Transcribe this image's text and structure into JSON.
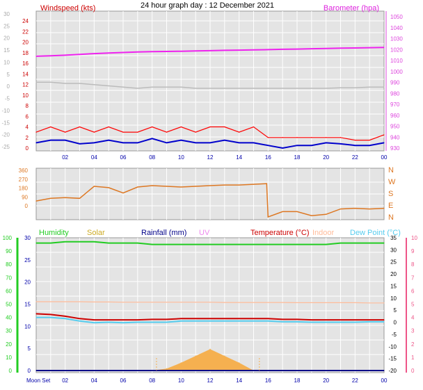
{
  "title": "24 hour graph day : 12 December 2021",
  "colors": {
    "plot_bg": "#e4e4e4",
    "grid": "#ffffff",
    "wind_avg": "#0000cc",
    "wind_gust": "#ff0000",
    "baro": "#ee22ee",
    "wind_dir": "#dd7722",
    "humidity": "#22cc22",
    "solar": "#ccaa22",
    "rainfall": "#000088",
    "uv": "#ee88ee",
    "temperature": "#cc0000",
    "indoor": "#ffbb99",
    "dewpoint": "#55ccee",
    "solar_fill": "#f5b050",
    "left_axis": "#aaaaaa",
    "left_axis_green": "#22cc22",
    "right_axis_magenta": "#dd44dd",
    "right_axis_pink": "#ee5588",
    "x_axis": "#0000aa"
  },
  "x_labels": [
    "02",
    "04",
    "06",
    "08",
    "10",
    "12",
    "14",
    "16",
    "18",
    "20",
    "22",
    "00"
  ],
  "moon_label": "Moon Set",
  "chart_data": [
    {
      "type": "line",
      "name": "wind-baro",
      "title": "24 hour graph day : 12 December 2021",
      "left_label": "Windspeed (kts)",
      "right_label": "Barometer (hpa)",
      "left_ticks_gray": [
        "30",
        "25",
        "20",
        "15",
        "10",
        "5",
        "0",
        "-5",
        "-10",
        "-15",
        "-20",
        "-25"
      ],
      "left_ticks_red": [
        "24",
        "22",
        "20",
        "18",
        "16",
        "14",
        "12",
        "10",
        "8",
        "6",
        "4",
        "2",
        "0"
      ],
      "right_ticks": [
        "1050",
        "1040",
        "1030",
        "1020",
        "1010",
        "1000",
        "990",
        "980",
        "970",
        "960",
        "950",
        "940",
        "930"
      ],
      "x": [
        0,
        1,
        2,
        3,
        4,
        5,
        6,
        7,
        8,
        9,
        10,
        11,
        12,
        13,
        14,
        15,
        16,
        17,
        18,
        19,
        20,
        21,
        22,
        23,
        24
      ],
      "series": [
        {
          "key": "baro",
          "unit": "hpa",
          "values": [
            1013,
            1013.5,
            1014,
            1014.8,
            1015.5,
            1016,
            1016.5,
            1017,
            1017.3,
            1017.5,
            1017.7,
            1018,
            1018.2,
            1018.5,
            1018.7,
            1019,
            1019.2,
            1019.5,
            1019.7,
            1020,
            1020.2,
            1020.5,
            1020.7,
            1021,
            1021.2
          ]
        },
        {
          "key": "gray",
          "unit": "",
          "values": [
            2,
            2,
            1.5,
            1.5,
            1,
            0.5,
            0,
            -0.5,
            0,
            0,
            0,
            -0.5,
            -0.5,
            -0.5,
            -0.5,
            -0.5,
            -0.5,
            -0.5,
            -0.5,
            -0.5,
            -0.5,
            -0.3,
            -0.3,
            0,
            0
          ]
        },
        {
          "key": "wind_gust",
          "unit": "kts",
          "values": [
            3,
            4,
            3,
            4,
            3,
            4,
            3,
            3,
            4,
            3,
            4,
            3,
            4,
            4,
            3,
            4,
            2,
            2,
            2,
            2,
            2,
            2,
            1.5,
            1.5,
            2.5
          ]
        },
        {
          "key": "wind_avg",
          "unit": "kts",
          "values": [
            1,
            1.5,
            1.5,
            0.8,
            1,
            1.5,
            1,
            1,
            1.8,
            1,
            1.5,
            1,
            1,
            1.5,
            1,
            1,
            0.5,
            0,
            0.5,
            0.5,
            1,
            0.8,
            0.5,
            0.5,
            1
          ]
        }
      ]
    },
    {
      "type": "line",
      "name": "wind-direction",
      "left_ticks": [
        "360",
        "270",
        "180",
        "90",
        "0"
      ],
      "right_ticks": [
        "N",
        "W",
        "S",
        "E",
        "N"
      ],
      "x": [
        0,
        1,
        2,
        3,
        4,
        5,
        6,
        7,
        8,
        9,
        10,
        11,
        12,
        13,
        14,
        15,
        15.9,
        16,
        17,
        18,
        19,
        20,
        21,
        22,
        23,
        24
      ],
      "series": [
        {
          "key": "wind_dir",
          "unit": "deg",
          "values": [
            130,
            150,
            155,
            150,
            240,
            230,
            190,
            235,
            245,
            240,
            235,
            240,
            245,
            250,
            250,
            255,
            260,
            10,
            50,
            50,
            20,
            30,
            70,
            75,
            70,
            75
          ]
        }
      ]
    },
    {
      "type": "line",
      "name": "temperature-humidity",
      "legend": [
        "Humidity",
        "Solar",
        "Rainfall (mm)",
        "UV",
        "Temperature (°C)",
        "Indoor",
        "Dew Point (°C)"
      ],
      "left_ticks_green": [
        "100",
        "90",
        "80",
        "70",
        "60",
        "50",
        "40",
        "30",
        "20",
        "10",
        "0"
      ],
      "left_ticks_gray": [
        "30",
        "25",
        "20",
        "15",
        "10",
        "5",
        "0"
      ],
      "right_ticks": [
        "35",
        "30",
        "25",
        "20",
        "15",
        "10",
        "5",
        "0",
        "-5",
        "-10",
        "-15",
        "-20"
      ],
      "right_ticks_pink": [
        "10",
        "9",
        "8",
        "7",
        "6",
        "5",
        "4",
        "3",
        "2",
        "1",
        "0"
      ],
      "x": [
        0,
        1,
        2,
        3,
        4,
        5,
        6,
        7,
        8,
        9,
        10,
        11,
        12,
        13,
        14,
        15,
        16,
        17,
        18,
        19,
        20,
        21,
        22,
        23,
        24
      ],
      "series": [
        {
          "key": "humidity",
          "unit": "%",
          "values": [
            96,
            96,
            97,
            97,
            97,
            96,
            96,
            96,
            95,
            95,
            95,
            95,
            95,
            95,
            95,
            95,
            95,
            95,
            95,
            95,
            95,
            96,
            96,
            96,
            96
          ]
        },
        {
          "key": "indoor",
          "unit": "°C",
          "values": [
            8.5,
            8.5,
            8.5,
            8.5,
            8.4,
            8.4,
            8.3,
            8.3,
            8.3,
            8.3,
            8.3,
            8.3,
            8.3,
            8.2,
            8.2,
            8.2,
            8.2,
            8.2,
            8.1,
            8.1,
            8.1,
            8.1,
            8.1,
            8.0,
            8.0
          ]
        },
        {
          "key": "temperature",
          "unit": "°C",
          "values": [
            3.5,
            3.2,
            2.5,
            1.5,
            1.0,
            1.0,
            1.0,
            1.0,
            1.2,
            1.2,
            1.5,
            1.5,
            1.5,
            1.5,
            1.5,
            1.5,
            1.5,
            1.2,
            1.2,
            1.0,
            1.0,
            1.0,
            1.0,
            1.0,
            1.0
          ]
        },
        {
          "key": "dewpoint",
          "unit": "°C",
          "values": [
            2.0,
            2.0,
            1.5,
            0.5,
            -0.2,
            0,
            -0.2,
            0,
            0,
            0,
            0.5,
            0.5,
            0.5,
            0.5,
            0.5,
            0.5,
            0.5,
            0.2,
            0.2,
            0,
            0,
            0,
            0,
            0.2,
            0.2
          ]
        },
        {
          "key": "solar",
          "unit": "",
          "values": [
            0,
            0,
            0,
            0,
            0,
            0,
            0,
            0,
            0,
            0.2,
            0.8,
            1.5,
            2.2,
            1.5,
            0.8,
            0,
            0,
            0,
            0,
            0,
            0,
            0,
            0,
            0,
            0
          ]
        },
        {
          "key": "rainfall",
          "unit": "mm",
          "values": [
            0,
            0,
            0,
            0,
            0,
            0,
            0,
            0,
            0,
            0,
            0,
            0,
            0,
            0,
            0,
            0,
            0,
            0,
            0,
            0,
            0,
            0,
            0,
            0,
            0
          ]
        }
      ]
    }
  ]
}
